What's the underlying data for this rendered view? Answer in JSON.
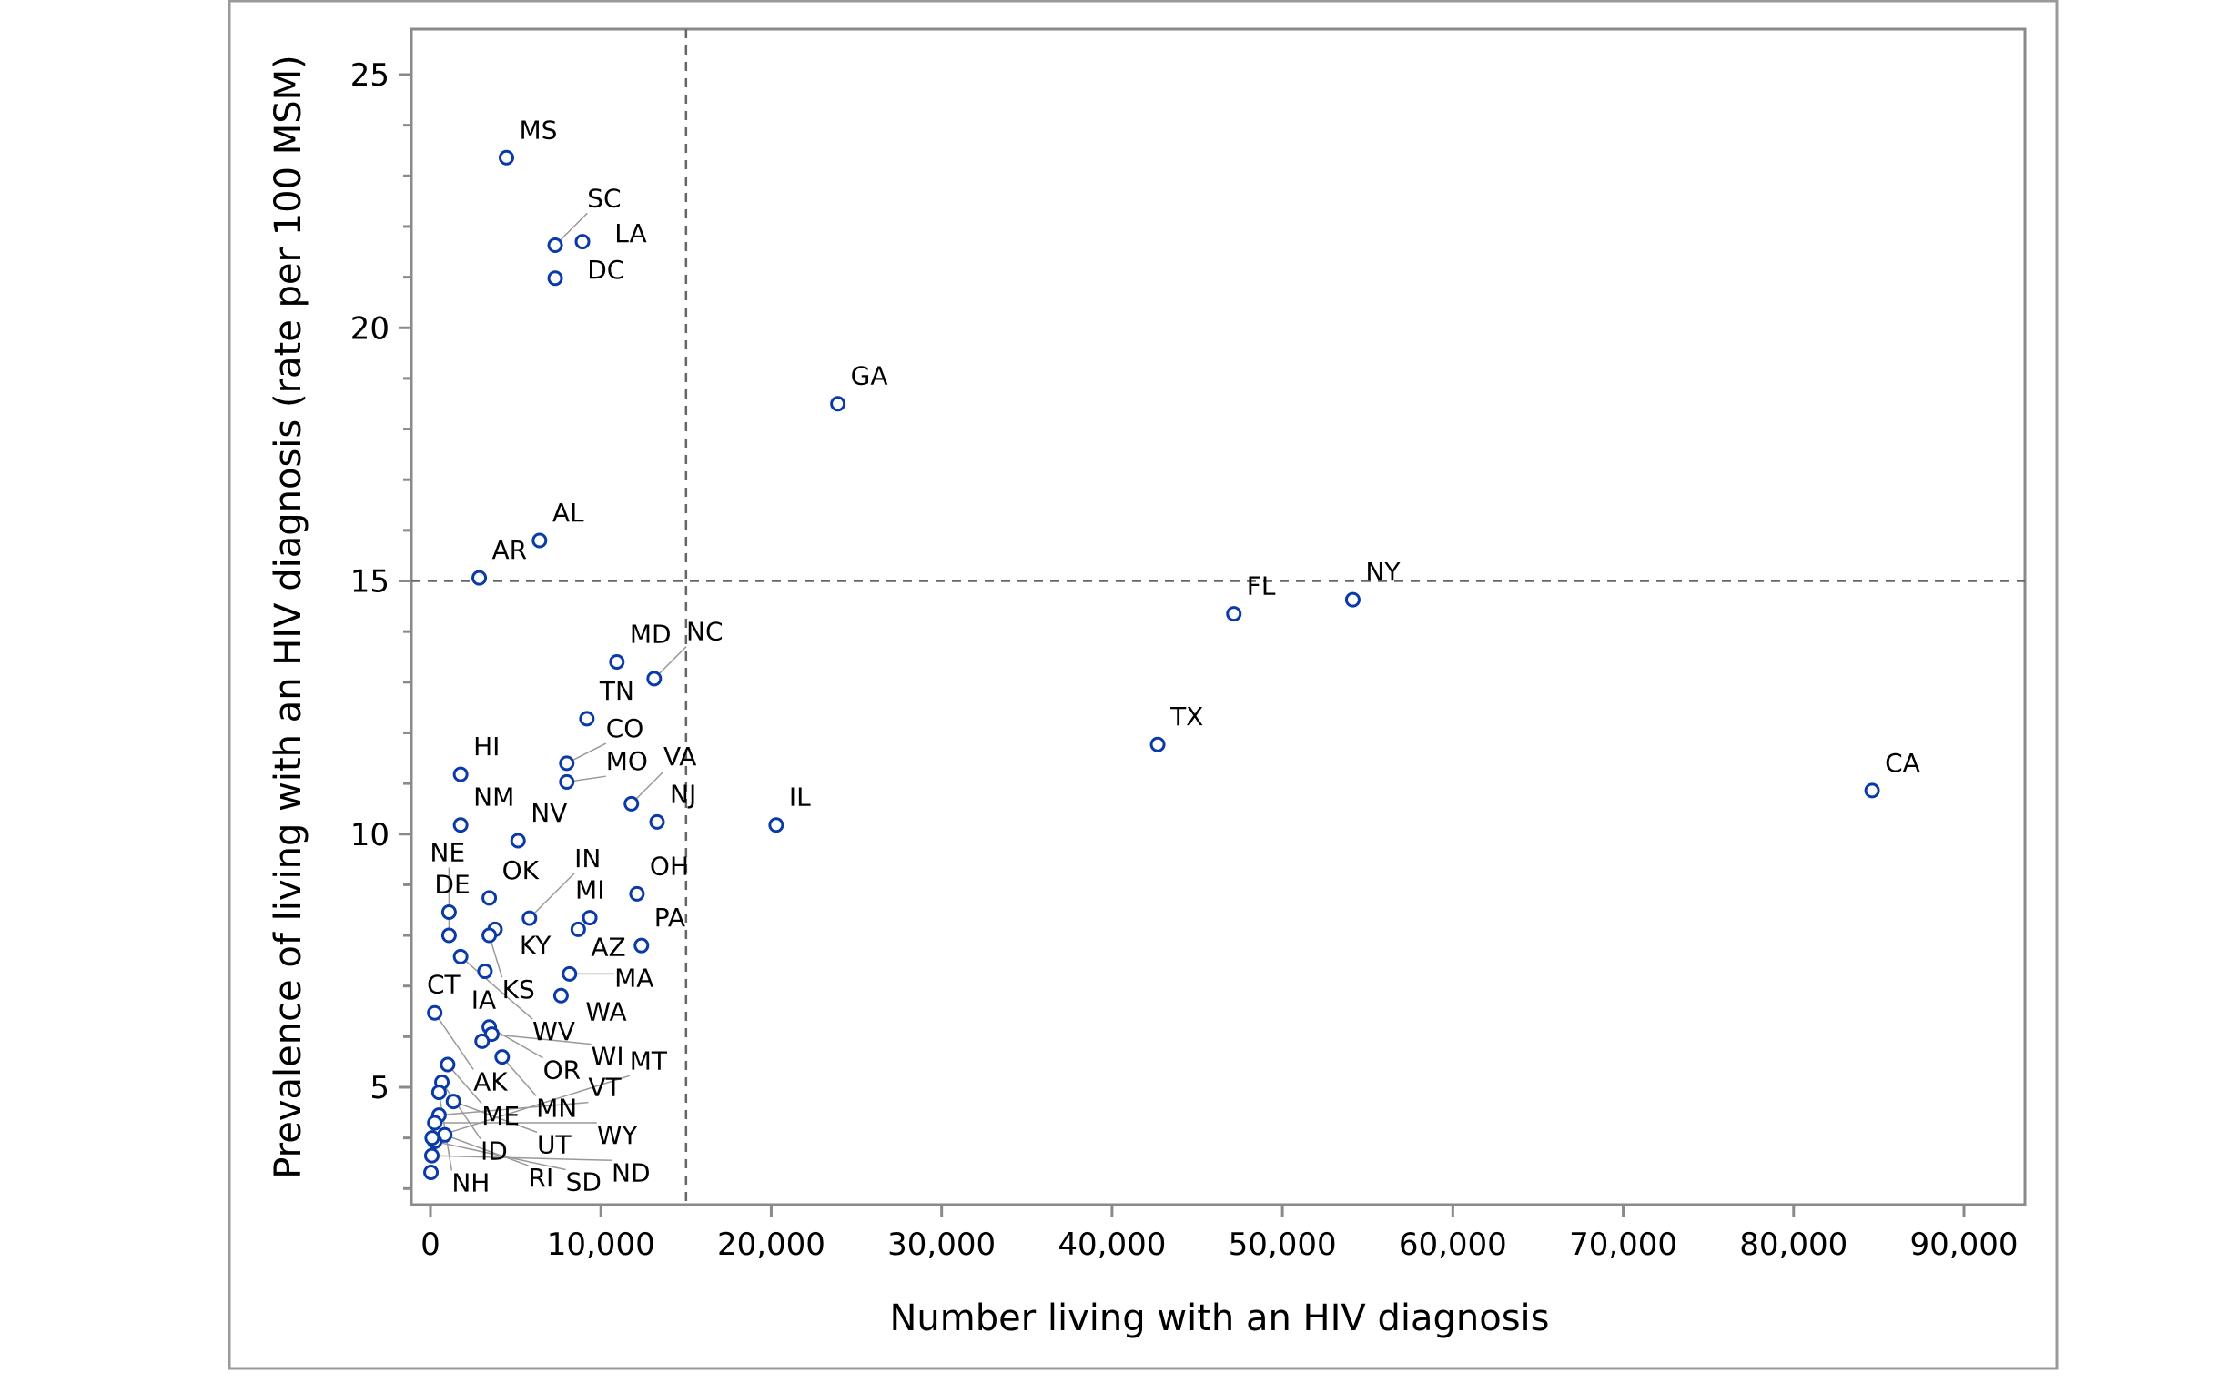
{
  "chart_data": {
    "type": "scatter",
    "title": "",
    "xlabel": "Number living with an HIV diagnosis",
    "ylabel": "Prevalence of living with an HIV diagnosis (rate per 100 MSM)",
    "xlim": [
      -1000,
      94500
    ],
    "ylim": [
      2.3,
      25.9
    ],
    "xticks": [
      0,
      10000,
      20000,
      30000,
      40000,
      50000,
      60000,
      70000,
      80000,
      90000
    ],
    "xtick_labels": [
      "0",
      "10,000",
      "20,000",
      "30,000",
      "40,000",
      "50,000",
      "60,000",
      "70,000",
      "80,000",
      "90,000"
    ],
    "yticks": [
      5,
      10,
      15,
      20,
      25
    ],
    "ytick_labels": [
      "5",
      "10",
      "15",
      "20",
      "25"
    ],
    "reference_lines": {
      "x": 15000,
      "y": 15
    },
    "grid": false,
    "marker_color": "#0a3aa8",
    "points": [
      {
        "label": "MS",
        "x": 4460,
        "y": 23.36
      },
      {
        "label": "SC",
        "x": 7320,
        "y": 21.63
      },
      {
        "label": "LA",
        "x": 8920,
        "y": 21.7
      },
      {
        "label": "DC",
        "x": 7320,
        "y": 20.98
      },
      {
        "label": "GA",
        "x": 23910,
        "y": 18.5
      },
      {
        "label": "AL",
        "x": 6400,
        "y": 15.8
      },
      {
        "label": "AR",
        "x": 2860,
        "y": 15.06
      },
      {
        "label": "FL",
        "x": 47150,
        "y": 14.35
      },
      {
        "label": "NY",
        "x": 54130,
        "y": 14.63
      },
      {
        "label": "MD",
        "x": 10940,
        "y": 13.4
      },
      {
        "label": "NC",
        "x": 13130,
        "y": 13.07
      },
      {
        "label": "TN",
        "x": 9180,
        "y": 12.28
      },
      {
        "label": "TX",
        "x": 42680,
        "y": 11.77
      },
      {
        "label": "CA",
        "x": 84610,
        "y": 10.86
      },
      {
        "label": "HI",
        "x": 1770,
        "y": 11.18
      },
      {
        "label": "CO",
        "x": 8000,
        "y": 11.4
      },
      {
        "label": "MO",
        "x": 8000,
        "y": 11.03
      },
      {
        "label": "VA",
        "x": 11790,
        "y": 10.6
      },
      {
        "label": "NJ",
        "x": 13300,
        "y": 10.24
      },
      {
        "label": "IL",
        "x": 20290,
        "y": 10.18
      },
      {
        "label": "NM",
        "x": 1770,
        "y": 10.18
      },
      {
        "label": "NV",
        "x": 5140,
        "y": 9.87
      },
      {
        "label": "OH",
        "x": 12120,
        "y": 8.82
      },
      {
        "label": "MI",
        "x": 9350,
        "y": 8.35
      },
      {
        "label": "AZ",
        "x": 8670,
        "y": 8.12
      },
      {
        "label": "PA",
        "x": 12380,
        "y": 7.8
      },
      {
        "label": "MA",
        "x": 8160,
        "y": 7.24
      },
      {
        "label": "WA",
        "x": 7660,
        "y": 6.81
      },
      {
        "label": "OK",
        "x": 3450,
        "y": 8.74
      },
      {
        "label": "DE",
        "x": 1090,
        "y": 8.46
      },
      {
        "label": "IN",
        "x": 5810,
        "y": 8.34
      },
      {
        "label": "KY",
        "x": 3790,
        "y": 8.12
      },
      {
        "label": "NE",
        "x": 1090,
        "y": 8.0
      },
      {
        "label": "KS",
        "x": 3450,
        "y": 8.0
      },
      {
        "label": "WV",
        "x": 1770,
        "y": 7.58
      },
      {
        "label": "CT",
        "x": 3200,
        "y": 7.29
      },
      {
        "label": "AK",
        "x": 250,
        "y": 6.47
      },
      {
        "label": "OR",
        "x": 3450,
        "y": 6.19
      },
      {
        "label": "WI",
        "x": 3600,
        "y": 6.05
      },
      {
        "label": "IA",
        "x": 3030,
        "y": 5.91
      },
      {
        "label": "MN",
        "x": 4210,
        "y": 5.6
      },
      {
        "label": "ME",
        "x": 1010,
        "y": 5.45
      },
      {
        "label": "ID",
        "x": 670,
        "y": 5.1
      },
      {
        "label": "UT",
        "x": 1350,
        "y": 4.72
      },
      {
        "label": "NH",
        "x": 500,
        "y": 4.9
      },
      {
        "label": "VT",
        "x": 500,
        "y": 4.45
      },
      {
        "label": "RI",
        "x": 840,
        "y": 4.06
      },
      {
        "label": "WY",
        "x": 250,
        "y": 4.3
      },
      {
        "label": "SD",
        "x": 250,
        "y": 3.93
      },
      {
        "label": "MT",
        "x": 100,
        "y": 4.0
      },
      {
        "label": "ND",
        "x": 80,
        "y": 3.65
      },
      {
        "label": "",
        "x": 30,
        "y": 3.32
      }
    ]
  }
}
